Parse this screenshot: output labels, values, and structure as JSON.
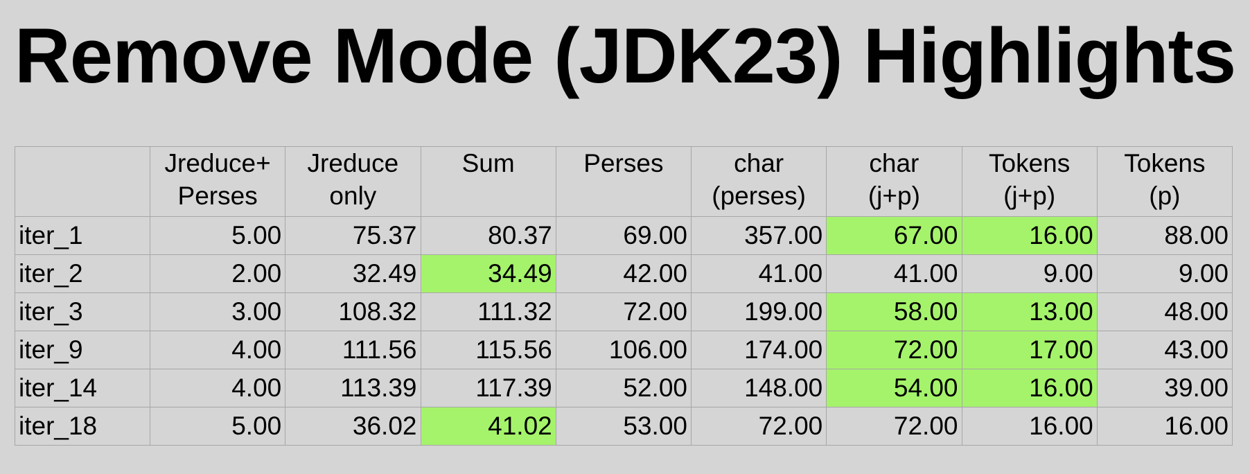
{
  "title": "Remove Mode (JDK23) Highlights",
  "colors": {
    "background": "#d5d5d5",
    "highlight": "#a5f36b",
    "grid_line": "#a6a6a6"
  },
  "table": {
    "columns": [
      {
        "key": "label",
        "lines": [
          "",
          ""
        ]
      },
      {
        "key": "jreduce_perses",
        "lines": [
          "Jreduce+",
          "Perses"
        ]
      },
      {
        "key": "jreduce_only",
        "lines": [
          "Jreduce",
          "only"
        ]
      },
      {
        "key": "sum",
        "lines": [
          "Sum",
          ""
        ]
      },
      {
        "key": "perses",
        "lines": [
          "Perses",
          ""
        ]
      },
      {
        "key": "char_perses",
        "lines": [
          "char",
          "(perses)"
        ]
      },
      {
        "key": "char_jp",
        "lines": [
          "char",
          "(j+p)"
        ]
      },
      {
        "key": "tokens_jp",
        "lines": [
          "Tokens",
          "(j+p)"
        ]
      },
      {
        "key": "tokens_p",
        "lines": [
          "Tokens",
          "(p)"
        ]
      }
    ],
    "rows": [
      {
        "label": "iter_1",
        "cells": [
          "5.00",
          "75.37",
          "80.37",
          "69.00",
          "357.00",
          "67.00",
          "16.00",
          "88.00"
        ],
        "highlight": [
          false,
          false,
          false,
          false,
          false,
          true,
          true,
          false
        ]
      },
      {
        "label": "iter_2",
        "cells": [
          "2.00",
          "32.49",
          "34.49",
          "42.00",
          "41.00",
          "41.00",
          "9.00",
          "9.00"
        ],
        "highlight": [
          false,
          false,
          true,
          false,
          false,
          false,
          false,
          false
        ]
      },
      {
        "label": "iter_3",
        "cells": [
          "3.00",
          "108.32",
          "111.32",
          "72.00",
          "199.00",
          "58.00",
          "13.00",
          "48.00"
        ],
        "highlight": [
          false,
          false,
          false,
          false,
          false,
          true,
          true,
          false
        ]
      },
      {
        "label": "iter_9",
        "cells": [
          "4.00",
          "111.56",
          "115.56",
          "106.00",
          "174.00",
          "72.00",
          "17.00",
          "43.00"
        ],
        "highlight": [
          false,
          false,
          false,
          false,
          false,
          true,
          true,
          false
        ]
      },
      {
        "label": "iter_14",
        "cells": [
          "4.00",
          "113.39",
          "117.39",
          "52.00",
          "148.00",
          "54.00",
          "16.00",
          "39.00"
        ],
        "highlight": [
          false,
          false,
          false,
          false,
          false,
          true,
          true,
          false
        ]
      },
      {
        "label": "iter_18",
        "cells": [
          "5.00",
          "36.02",
          "41.02",
          "53.00",
          "72.00",
          "72.00",
          "16.00",
          "16.00"
        ],
        "highlight": [
          false,
          false,
          true,
          false,
          false,
          false,
          false,
          false
        ]
      }
    ]
  }
}
